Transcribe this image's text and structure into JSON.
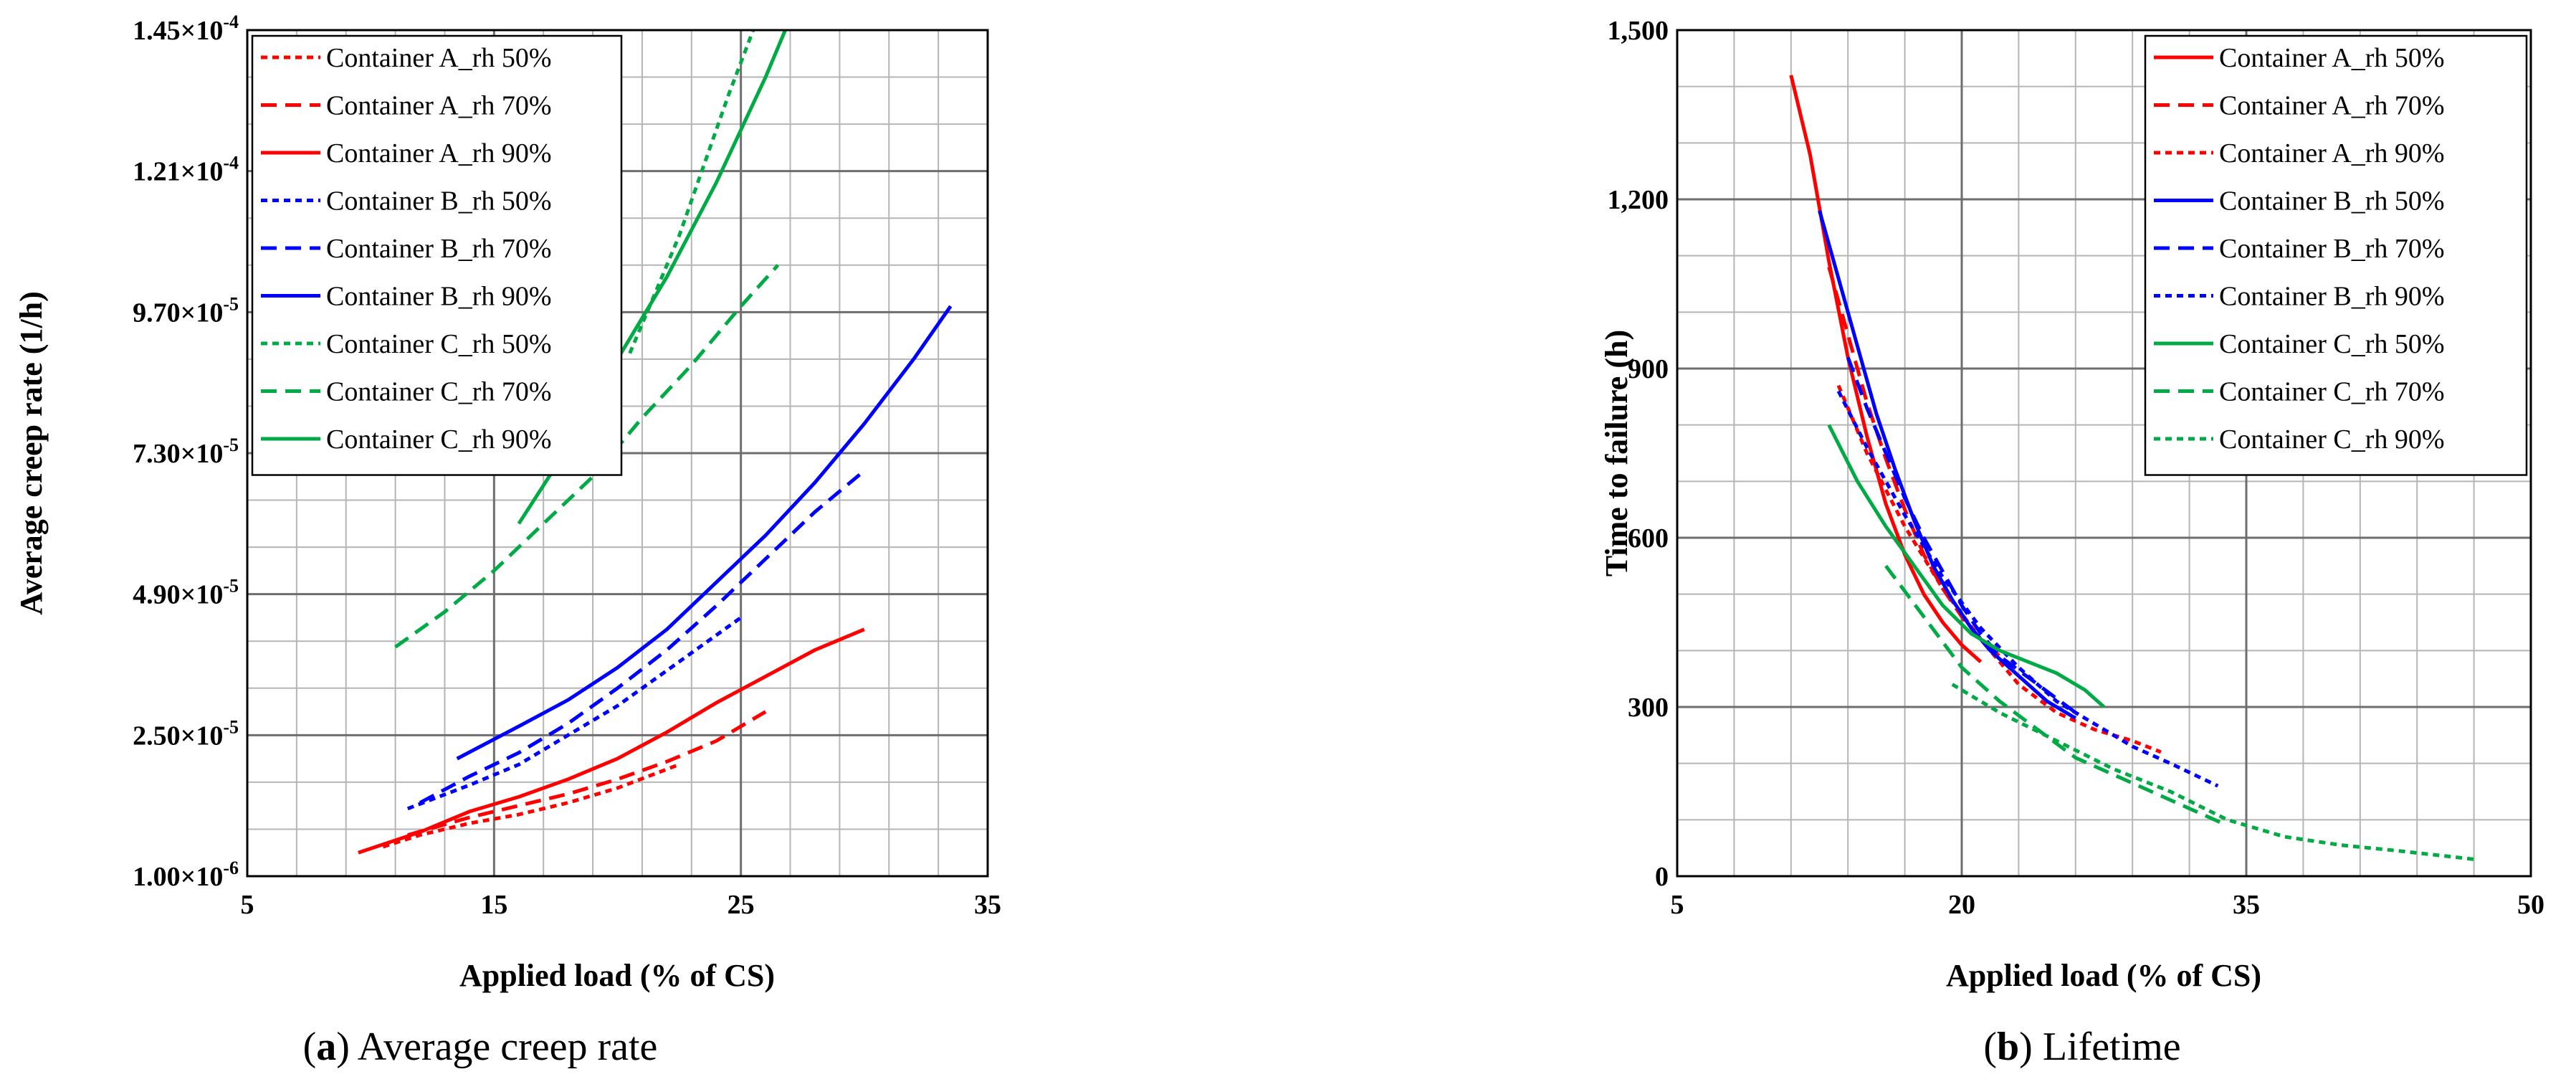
{
  "chart_data": [
    {
      "type": "line",
      "caption_letter": "a",
      "caption_text": "Average creep rate",
      "xlabel": "Applied load (% of CS)",
      "ylabel": "Average creep rate (1/h)",
      "xlim": [
        5,
        35
      ],
      "ylim": [
        1e-06,
        0.000145
      ],
      "x_ticks": [
        5,
        15,
        25,
        35
      ],
      "x_tick_labels": [
        "5",
        "15",
        "25",
        "35"
      ],
      "y_ticks": [
        1e-06,
        2.5e-05,
        4.9e-05,
        7.3e-05,
        9.7e-05,
        0.000121,
        0.000145
      ],
      "y_tick_labels": [
        {
          "mantissa": "1.00",
          "exp": "-6"
        },
        {
          "mantissa": "2.50",
          "exp": "-5"
        },
        {
          "mantissa": "4.90",
          "exp": "-5"
        },
        {
          "mantissa": "7.30",
          "exp": "-5"
        },
        {
          "mantissa": "9.70",
          "exp": "-5"
        },
        {
          "mantissa": "1.21",
          "exp": "-4"
        },
        {
          "mantissa": "1.45",
          "exp": "-4"
        }
      ],
      "times_sign": "×",
      "base": "10",
      "grid": true,
      "legend_position": "top-left",
      "series": [
        {
          "name": "Container A_rh 50%",
          "color": "#ff0000",
          "dash": "dotted",
          "x": [
            10.5,
            12,
            14,
            16,
            18,
            20,
            22.5
          ],
          "y": [
            6e-06,
            8e-06,
            1e-05,
            1.15e-05,
            1.35e-05,
            1.6e-05,
            2e-05
          ]
        },
        {
          "name": "Container A_rh 70%",
          "color": "#ff0000",
          "dash": "dashed",
          "x": [
            11.5,
            14,
            16,
            18,
            20,
            22,
            24,
            26
          ],
          "y": [
            8e-06,
            1.1e-05,
            1.3e-05,
            1.5e-05,
            1.75e-05,
            2.05e-05,
            2.4e-05,
            2.9e-05
          ]
        },
        {
          "name": "Container A_rh 90%",
          "color": "#ff0000",
          "dash": "solid",
          "x": [
            9.5,
            12,
            14,
            16,
            18,
            20,
            22,
            24,
            26,
            28,
            30
          ],
          "y": [
            5e-06,
            8.5e-06,
            1.2e-05,
            1.45e-05,
            1.75e-05,
            2.1e-05,
            2.55e-05,
            3.05e-05,
            3.5e-05,
            3.95e-05,
            4.3e-05
          ]
        },
        {
          "name": "Container B_rh 50%",
          "color": "#0000ff",
          "dash": "dotted",
          "x": [
            11.5,
            14,
            16,
            18,
            20,
            22,
            24,
            25
          ],
          "y": [
            1.25e-05,
            1.65e-05,
            2e-05,
            2.5e-05,
            3e-05,
            3.6e-05,
            4.2e-05,
            4.5e-05
          ]
        },
        {
          "name": "Container B_rh 70%",
          "color": "#0000ff",
          "dash": "dashed",
          "x": [
            12,
            14,
            16,
            18,
            20,
            22,
            24,
            26,
            28,
            30
          ],
          "y": [
            1.35e-05,
            1.8e-05,
            2.2e-05,
            2.7e-05,
            3.3e-05,
            3.95e-05,
            4.7e-05,
            5.5e-05,
            6.3e-05,
            7e-05
          ]
        },
        {
          "name": "Container B_rh 90%",
          "color": "#0000ff",
          "dash": "solid",
          "x": [
            13.5,
            16,
            18,
            20,
            22,
            24,
            26,
            28,
            30,
            32,
            33.5
          ],
          "y": [
            2.1e-05,
            2.65e-05,
            3.1e-05,
            3.65e-05,
            4.3e-05,
            5.1e-05,
            5.9e-05,
            6.8e-05,
            7.8e-05,
            8.9e-05,
            9.8e-05
          ]
        },
        {
          "name": "Container C_rh 50%",
          "color": "#00aa44",
          "dash": "dotted",
          "x": [
            20.5,
            21.5,
            22.5,
            23.5,
            24.5,
            25.5
          ],
          "y": [
            9e-05,
            0.0001,
            0.00011,
            0.000122,
            0.000134,
            0.000145
          ]
        },
        {
          "name": "Container C_rh 70%",
          "color": "#00aa44",
          "dash": "dashed",
          "x": [
            11,
            13,
            15,
            17,
            19,
            21,
            23,
            25,
            26.5
          ],
          "y": [
            4e-05,
            4.6e-05,
            5.3e-05,
            6.1e-05,
            6.9e-05,
            7.9e-05,
            8.8e-05,
            9.8e-05,
            0.000105
          ]
        },
        {
          "name": "Container C_rh 90%",
          "color": "#00aa44",
          "dash": "solid",
          "x": [
            16,
            18,
            20,
            22,
            24,
            26,
            26.8
          ],
          "y": [
            6.1e-05,
            7.4e-05,
            8.9e-05,
            0.000103,
            0.000119,
            0.000137,
            0.000145
          ]
        }
      ]
    },
    {
      "type": "line",
      "caption_letter": "b",
      "caption_text": "Lifetime",
      "xlabel": "Applied load (% of CS)",
      "ylabel": "Time to failure (h)",
      "xlim": [
        5,
        50
      ],
      "ylim": [
        0,
        1500
      ],
      "x_ticks": [
        5,
        20,
        35,
        50
      ],
      "x_tick_labels": [
        "5",
        "20",
        "35",
        "50"
      ],
      "y_ticks": [
        0,
        300,
        600,
        900,
        1200,
        1500
      ],
      "y_tick_labels": [
        "0",
        "300",
        "600",
        "900",
        "1,200",
        "1,500"
      ],
      "grid": true,
      "legend_position": "top-right",
      "series": [
        {
          "name": "Container A_rh 50%",
          "color": "#ff0000",
          "dash": "solid",
          "x": [
            11,
            12,
            13,
            14,
            15,
            16,
            17,
            18,
            19,
            20,
            21
          ],
          "y": [
            1420,
            1280,
            1090,
            920,
            780,
            660,
            570,
            500,
            450,
            410,
            380
          ]
        },
        {
          "name": "Container A_rh 70%",
          "color": "#ff0000",
          "dash": "dashed",
          "x": [
            13,
            14,
            15,
            16,
            17,
            18,
            19,
            20,
            21,
            22
          ],
          "y": [
            1080,
            960,
            840,
            740,
            650,
            570,
            510,
            460,
            420,
            390
          ]
        },
        {
          "name": "Container A_rh 90%",
          "color": "#ff0000",
          "dash": "dotted",
          "x": [
            13.5,
            15,
            17,
            19,
            21,
            23,
            25,
            27,
            29,
            30.5
          ],
          "y": [
            870,
            750,
            620,
            510,
            420,
            340,
            290,
            260,
            240,
            220
          ]
        },
        {
          "name": "Container B_rh 50%",
          "color": "#0000ff",
          "dash": "solid",
          "x": [
            12.5,
            13.5,
            14.5,
            15.5,
            16.5,
            17.5,
            18.5,
            19.5,
            20.5,
            21.5,
            22.5,
            24.5,
            26
          ],
          "y": [
            1180,
            1060,
            940,
            820,
            720,
            630,
            550,
            490,
            440,
            400,
            370,
            310,
            280
          ]
        },
        {
          "name": "Container B_rh 70%",
          "color": "#0000ff",
          "dash": "dashed",
          "x": [
            14,
            15,
            16,
            17,
            18,
            19,
            20,
            21,
            22,
            24,
            26
          ],
          "y": [
            920,
            830,
            750,
            670,
            600,
            540,
            480,
            430,
            390,
            340,
            290
          ]
        },
        {
          "name": "Container B_rh 90%",
          "color": "#0000ff",
          "dash": "dotted",
          "x": [
            13.5,
            15,
            17,
            19,
            21,
            23,
            25,
            27,
            29,
            31,
            33.5
          ],
          "y": [
            860,
            760,
            640,
            530,
            440,
            370,
            310,
            270,
            230,
            200,
            160
          ]
        },
        {
          "name": "Container C_rh 50%",
          "color": "#00aa44",
          "dash": "solid",
          "x": [
            13,
            14.5,
            16,
            17.5,
            19,
            20.5,
            22,
            23.5,
            25,
            26.5,
            27.5
          ],
          "y": [
            800,
            700,
            620,
            550,
            480,
            430,
            400,
            380,
            360,
            330,
            300
          ]
        },
        {
          "name": "Container C_rh 70%",
          "color": "#00aa44",
          "dash": "dashed",
          "x": [
            16,
            18,
            20,
            22,
            24,
            26,
            28,
            30,
            32,
            34
          ],
          "y": [
            550,
            460,
            370,
            310,
            260,
            210,
            180,
            150,
            120,
            90
          ]
        },
        {
          "name": "Container C_rh 90%",
          "color": "#00aa44",
          "dash": "dotted",
          "x": [
            19.5,
            22,
            25,
            28,
            31,
            34,
            37,
            40,
            43,
            47
          ],
          "y": [
            340,
            290,
            240,
            190,
            150,
            100,
            70,
            55,
            45,
            30
          ]
        }
      ]
    }
  ]
}
